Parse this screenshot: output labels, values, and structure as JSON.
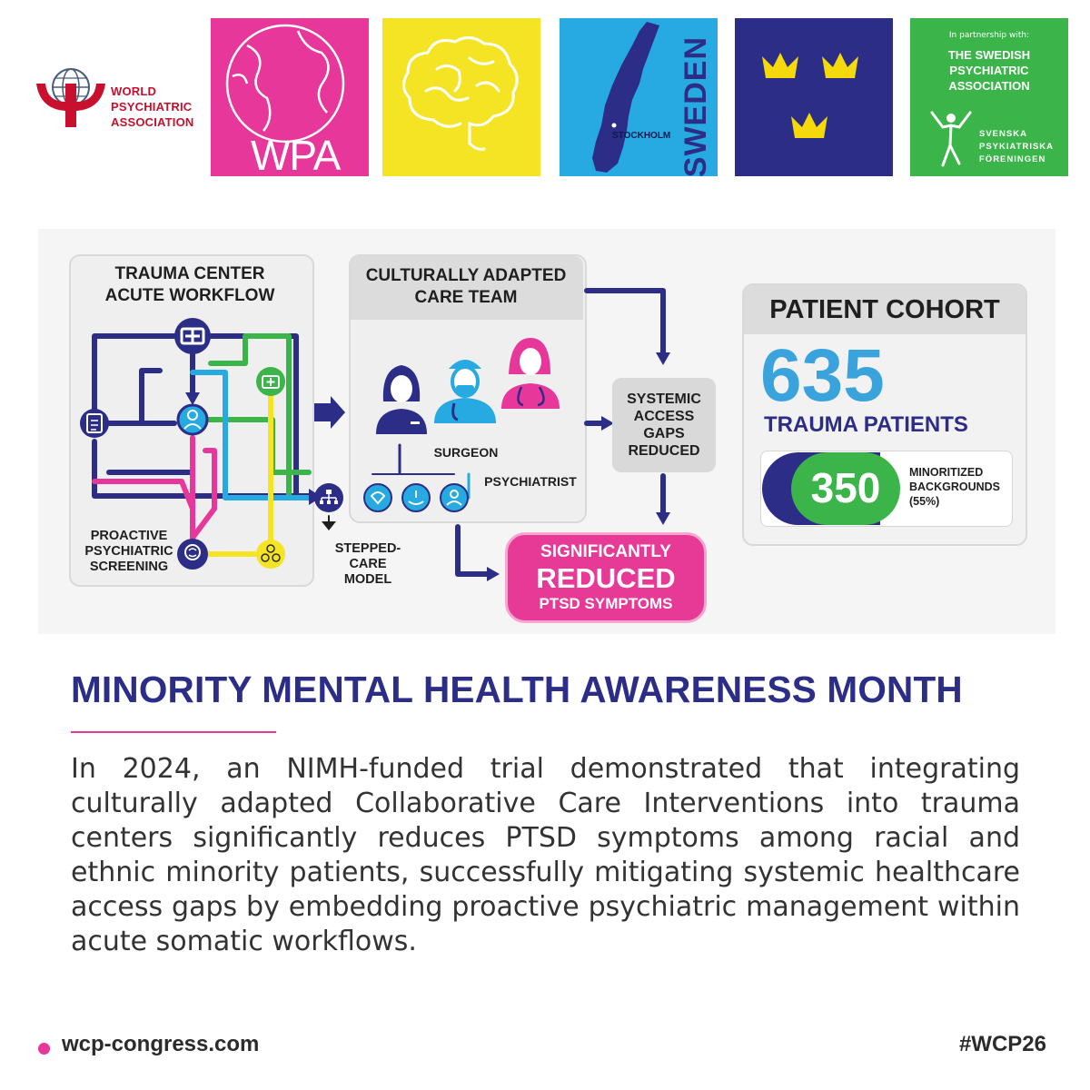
{
  "header": {
    "logo_lines": [
      "WORLD",
      "PSYCHIATRIC",
      "ASSOCIATION"
    ],
    "tile_wpa_text": "WPA",
    "tile_sweden_text": "SWEDEN",
    "tile_sweden_city": "STOCKHOLM",
    "partner_intro": "In partnership with:",
    "partner_name_lines": [
      "THE SWEDISH",
      "PSYCHIATRIC",
      "ASSOCIATION"
    ],
    "partner_sub_lines": [
      "SVENSKA",
      "PSYKIATRISKA",
      "FÖRENINGEN"
    ],
    "colors": {
      "pink": "#e8379a",
      "yellow": "#f5e423",
      "blue": "#27a9e1",
      "navy": "#2b2d86",
      "green": "#3bb54a",
      "wpa_red": "#c8102e"
    }
  },
  "infographic": {
    "workflow_title_lines": [
      "TRAUMA CENTER",
      "ACUTE WORKFLOW"
    ],
    "screening_lines": [
      "PROACTIVE",
      "PSYCHIATRIC",
      "SCREENING"
    ],
    "team_title_lines": [
      "CULTURALLY ADAPTED",
      "CARE TEAM"
    ],
    "surgeon_label": "SURGEON",
    "psychiatrist_label": "PSYCHIATRIST",
    "stepped_care_lines": [
      "STEPPED-CARE",
      "MODEL"
    ],
    "gaps_lines": [
      "SYSTEMIC",
      "ACCESS",
      "GAPS",
      "REDUCED"
    ],
    "result_lines": [
      "SIGNIFICANTLY",
      "REDUCED",
      "PTSD SYMPTOMS"
    ],
    "cohort_title": "PATIENT COHORT",
    "cohort_total": "635",
    "cohort_total_label": "TRAUMA PATIENTS",
    "cohort_minority": "350",
    "cohort_minority_lines": [
      "MINORITIZED",
      "BACKGROUNDS",
      "(55%)"
    ]
  },
  "content": {
    "heading": "MINORITY MENTAL HEALTH AWARENESS MONTH",
    "body": "In 2024, an NIMH-funded trial demonstrated that integrating culturally adapted Collaborative Care Interventions into trauma centers significantly reduces PTSD symptoms among racial and ethnic minority patients, successfully mitigating systemic healthcare access gaps by embedding proactive psychiatric management within acute somatic workflows."
  },
  "footer": {
    "url": "wcp-congress.com",
    "hashtag": "#WCP26"
  }
}
